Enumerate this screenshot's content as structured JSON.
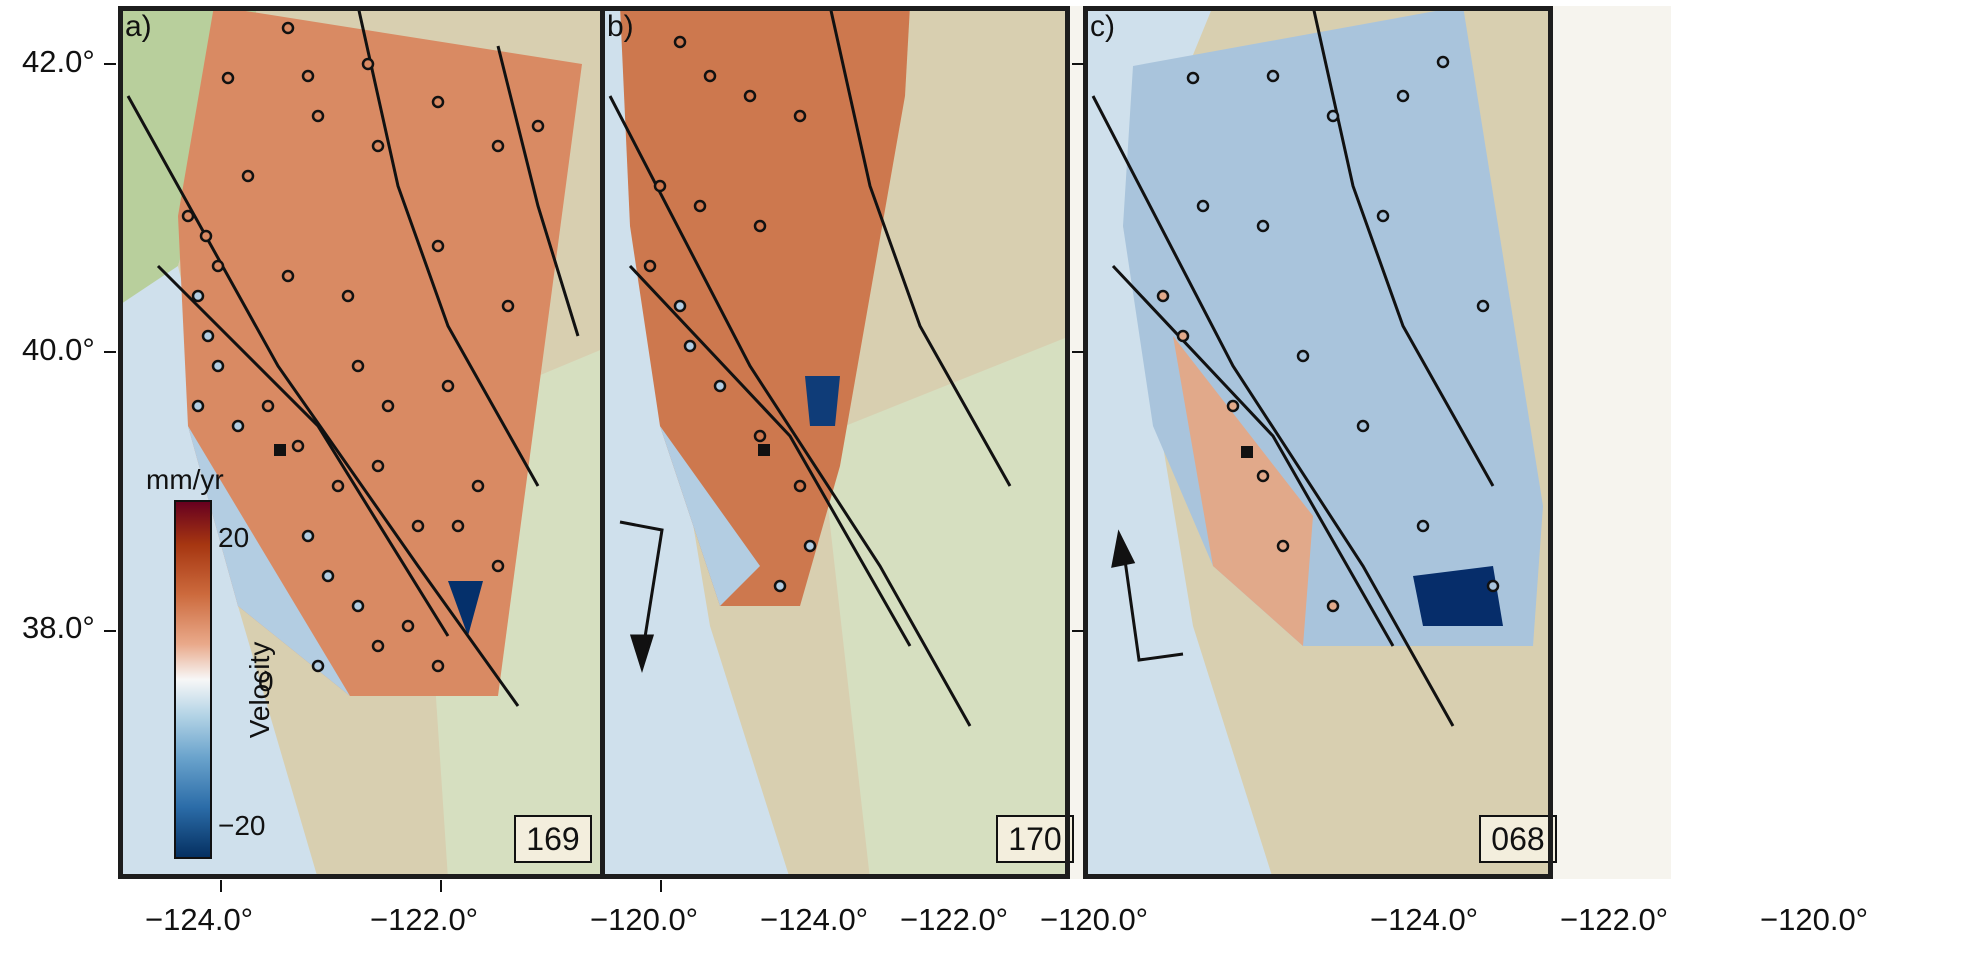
{
  "panels": [
    {
      "letter": "a)",
      "track": "169",
      "fill": "#cf7a52",
      "look_arrow": "none"
    },
    {
      "letter": "b)",
      "track": "170",
      "fill": "#c9714a",
      "look_arrow": "descending"
    },
    {
      "letter": "c)",
      "track": "068",
      "fill": "#a9c4dc",
      "look_arrow": "ascending"
    }
  ],
  "y_axis": {
    "labels": [
      "42.0°",
      "40.0°",
      "38.0°"
    ],
    "values": [
      42,
      40,
      38
    ]
  },
  "x_axis": {
    "labels": [
      "−124.0°",
      "−122.0°",
      "−120.0°"
    ],
    "values": [
      -124,
      -122,
      -120
    ]
  },
  "colorbar": {
    "title": "Velocity",
    "unit": "mm/yr",
    "ticks": [
      "20",
      "0",
      "−20"
    ],
    "tick_values": [
      20,
      0,
      -20
    ],
    "range": [
      -27,
      27
    ],
    "colors": {
      "high": "#67001f",
      "mid": "#f7f7f7",
      "low": "#053061"
    }
  },
  "colors": {
    "ocean": "#cfe0ec",
    "land": "#d8cfb0",
    "lake": "#f3eedd",
    "fault": "#111111",
    "gnss_edge": "#111111"
  }
}
